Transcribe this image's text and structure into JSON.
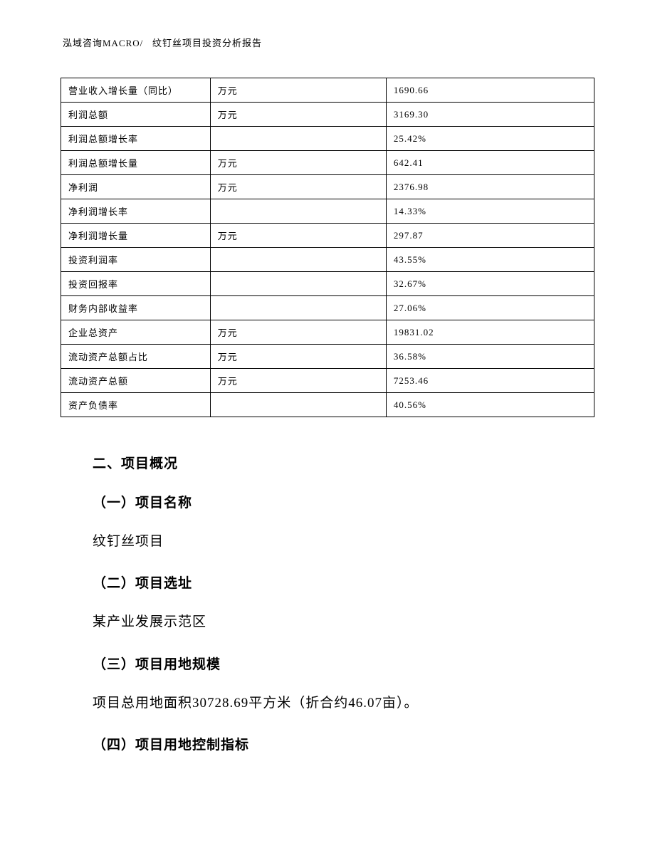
{
  "header": {
    "company": "泓域咨询MACRO/",
    "doc_title": "纹钉丝项目投资分析报告"
  },
  "table": {
    "rows": [
      {
        "label": "营业收入增长量（同比）",
        "unit": "万元",
        "value": "1690.66"
      },
      {
        "label": "利润总额",
        "unit": "万元",
        "value": "3169.30"
      },
      {
        "label": "利润总额增长率",
        "unit": "",
        "value": "25.42%"
      },
      {
        "label": "利润总额增长量",
        "unit": "万元",
        "value": "642.41"
      },
      {
        "label": "净利润",
        "unit": "万元",
        "value": "2376.98"
      },
      {
        "label": "净利润增长率",
        "unit": "",
        "value": "14.33%"
      },
      {
        "label": "净利润增长量",
        "unit": "万元",
        "value": "297.87"
      },
      {
        "label": "投资利润率",
        "unit": "",
        "value": "43.55%"
      },
      {
        "label": "投资回报率",
        "unit": "",
        "value": "32.67%"
      },
      {
        "label": "财务内部收益率",
        "unit": "",
        "value": "27.06%"
      },
      {
        "label": "企业总资产",
        "unit": "万元",
        "value": "19831.02"
      },
      {
        "label": "流动资产总额占比",
        "unit": "万元",
        "value": "36.58%"
      },
      {
        "label": "流动资产总额",
        "unit": "万元",
        "value": "7253.46"
      },
      {
        "label": "资产负债率",
        "unit": "",
        "value": "40.56%"
      }
    ]
  },
  "sections": {
    "main_title": "二、项目概况",
    "sub1_title": "（一）项目名称",
    "sub1_text": "纹钉丝项目",
    "sub2_title": "（二）项目选址",
    "sub2_text": "某产业发展示范区",
    "sub3_title": "（三）项目用地规模",
    "sub3_text": "项目总用地面积30728.69平方米（折合约46.07亩）。",
    "sub4_title": "（四）项目用地控制指标"
  }
}
